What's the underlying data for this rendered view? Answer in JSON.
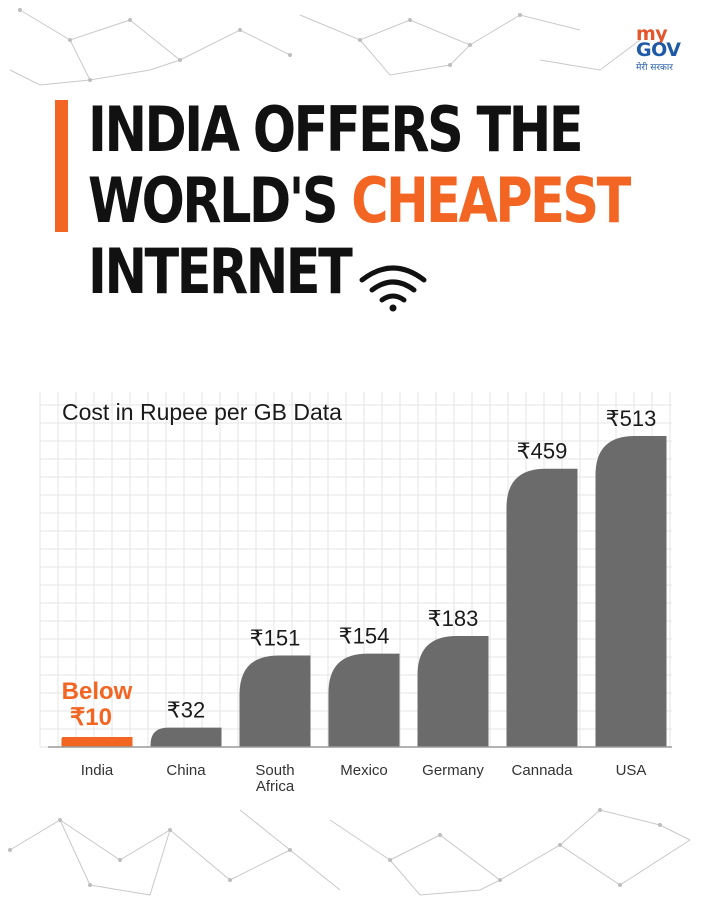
{
  "brand": {
    "logo_my": "my",
    "logo_gov": "GOV",
    "logo_tagline": "मेरी सरकार",
    "accent_color": "#f26522",
    "bar_color": "#6b6b6b"
  },
  "headline": {
    "line1": "INDIA OFFERS THE",
    "line2_prefix": "WORLD'S ",
    "line2_highlight": "CHEAPEST",
    "line3": "INTERNET",
    "icon": "wifi-icon"
  },
  "chart_data": {
    "type": "bar",
    "title": "Cost in Rupee per GB Data",
    "xlabel": "",
    "ylabel": "",
    "ylim": [
      0,
      560
    ],
    "grid": true,
    "categories": [
      "India",
      "China",
      "South Africa",
      "Mexico",
      "Germany",
      "Cannada",
      "USA"
    ],
    "values": [
      10,
      32,
      151,
      154,
      183,
      459,
      513
    ],
    "data_labels": [
      "Below ₹10",
      "₹32",
      "₹151",
      "₹154",
      "₹183",
      "₹459",
      "₹513"
    ],
    "highlight_category": "India"
  }
}
